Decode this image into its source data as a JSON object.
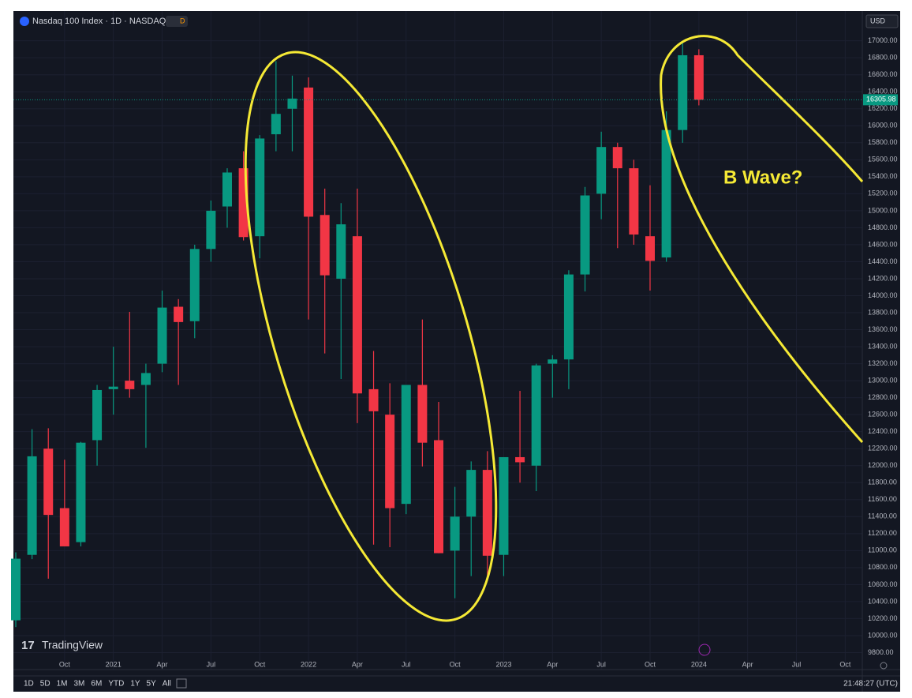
{
  "chart_data": {
    "type": "candlestick",
    "title": "Nasdaq 100 Index · 1D · NASDAQ",
    "currency": "USD",
    "annotation": "B Wave?",
    "watermark": "TradingView",
    "clock": "21:48:27 (UTC)",
    "ranges": [
      "1D",
      "5D",
      "1M",
      "3M",
      "6M",
      "YTD",
      "1Y",
      "5Y",
      "All"
    ],
    "x": [
      "2020-07",
      "2020-08",
      "2020-09",
      "2020-10",
      "2020-11",
      "2020-12",
      "2021-01",
      "2021-02",
      "2021-03",
      "2021-04",
      "2021-05",
      "2021-06",
      "2021-07",
      "2021-08",
      "2021-09",
      "2021-10",
      "2021-11",
      "2021-12",
      "2022-01",
      "2022-02",
      "2022-03",
      "2022-04",
      "2022-05",
      "2022-06",
      "2022-07",
      "2022-08",
      "2022-09",
      "2022-10",
      "2022-11",
      "2022-12",
      "2023-01",
      "2023-02",
      "2023-03",
      "2023-04",
      "2023-05",
      "2023-06",
      "2023-07",
      "2023-08",
      "2023-09",
      "2023-10",
      "2023-11",
      "2023-12",
      "2024-01"
    ],
    "open": [
      10180,
      10950,
      12200,
      11500,
      11100,
      12300,
      12900,
      13000,
      12950,
      13200,
      13870,
      13700,
      14550,
      15050,
      15500,
      14700,
      15900,
      16200,
      16450,
      14950,
      14200,
      14700,
      12900,
      12600,
      11550,
      12950,
      12300,
      11000,
      11400,
      11950,
      10950,
      12100,
      12000,
      13200,
      13250,
      14250,
      15200,
      15750,
      15500,
      14700,
      14450,
      15950,
      16830
    ],
    "high": [
      10980,
      12430,
      12440,
      12070,
      12280,
      12950,
      13400,
      13810,
      13200,
      14060,
      13960,
      14600,
      15120,
      15500,
      15700,
      15890,
      16760,
      16590,
      16570,
      15260,
      15090,
      15260,
      13350,
      12970,
      12950,
      13720,
      12750,
      11750,
      12050,
      12170,
      12100,
      12880,
      13200,
      13300,
      14300,
      15280,
      15930,
      15800,
      15600,
      15300,
      16170,
      16970,
      16900
    ],
    "low": [
      10100,
      10900,
      10670,
      11050,
      11050,
      12000,
      12600,
      12800,
      12210,
      13100,
      12950,
      13500,
      14400,
      14800,
      14650,
      14440,
      15700,
      15700,
      13720,
      13320,
      13020,
      12500,
      11070,
      11040,
      11430,
      11990,
      10970,
      10440,
      10700,
      10690,
      10700,
      11800,
      11700,
      12800,
      12900,
      14050,
      14900,
      14560,
      14600,
      14060,
      14400,
      15800,
      16240
    ],
    "close": [
      10905,
      12110,
      11420,
      11050,
      12270,
      12890,
      12930,
      12900,
      13090,
      13860,
      13690,
      14550,
      15000,
      15450,
      14690,
      15850,
      16140,
      16320,
      14930,
      14240,
      14840,
      12850,
      12640,
      11500,
      12950,
      12270,
      10970,
      11400,
      11950,
      10940,
      12100,
      12040,
      13180,
      13250,
      14250,
      15180,
      15750,
      15500,
      14720,
      14410,
      15950,
      16830,
      16306
    ],
    "up_color": "#089981",
    "down_color": "#f23645",
    "last_price": {
      "value": 16305.98,
      "label": "16305.98"
    },
    "xlim": [
      "2020-07",
      "2024-11"
    ],
    "xticks": [
      {
        "value": "2020-10",
        "label": "Oct"
      },
      {
        "value": "2021-01",
        "label": "2021"
      },
      {
        "value": "2021-04",
        "label": "Apr"
      },
      {
        "value": "2021-07",
        "label": "Jul"
      },
      {
        "value": "2021-10",
        "label": "Oct"
      },
      {
        "value": "2022-01",
        "label": "2022"
      },
      {
        "value": "2022-04",
        "label": "Apr"
      },
      {
        "value": "2022-07",
        "label": "Jul"
      },
      {
        "value": "2022-10",
        "label": "Oct"
      },
      {
        "value": "2023-01",
        "label": "2023"
      },
      {
        "value": "2023-04",
        "label": "Apr"
      },
      {
        "value": "2023-07",
        "label": "Jul"
      },
      {
        "value": "2023-10",
        "label": "Oct"
      },
      {
        "value": "2024-01",
        "label": "2024"
      },
      {
        "value": "2024-04",
        "label": "Apr"
      },
      {
        "value": "2024-07",
        "label": "Jul"
      },
      {
        "value": "2024-10",
        "label": "Oct"
      }
    ],
    "ylim": [
      9600,
      17350
    ],
    "yticks": [
      {
        "value": 9800,
        "label": "9800.00"
      },
      {
        "value": 10000,
        "label": "10000.00"
      },
      {
        "value": 10200,
        "label": "10200.00"
      },
      {
        "value": 10400,
        "label": "10400.00"
      },
      {
        "value": 10600,
        "label": "10600.00"
      },
      {
        "value": 10800,
        "label": "10800.00"
      },
      {
        "value": 11000,
        "label": "11000.00"
      },
      {
        "value": 11200,
        "label": "11200.00"
      },
      {
        "value": 11400,
        "label": "11400.00"
      },
      {
        "value": 11600,
        "label": "11600.00"
      },
      {
        "value": 11800,
        "label": "11800.00"
      },
      {
        "value": 12000,
        "label": "12000.00"
      },
      {
        "value": 12200,
        "label": "12200.00"
      },
      {
        "value": 12400,
        "label": "12400.00"
      },
      {
        "value": 12600,
        "label": "12600.00"
      },
      {
        "value": 12800,
        "label": "12800.00"
      },
      {
        "value": 13000,
        "label": "13000.00"
      },
      {
        "value": 13200,
        "label": "13200.00"
      },
      {
        "value": 13400,
        "label": "13400.00"
      },
      {
        "value": 13600,
        "label": "13600.00"
      },
      {
        "value": 13800,
        "label": "13800.00"
      },
      {
        "value": 14000,
        "label": "14000.00"
      },
      {
        "value": 14200,
        "label": "14200.00"
      },
      {
        "value": 14400,
        "label": "14400.00"
      },
      {
        "value": 14600,
        "label": "14600.00"
      },
      {
        "value": 14800,
        "label": "14800.00"
      },
      {
        "value": 15000,
        "label": "15000.00"
      },
      {
        "value": 15200,
        "label": "15200.00"
      },
      {
        "value": 15400,
        "label": "15400.00"
      },
      {
        "value": 15600,
        "label": "15600.00"
      },
      {
        "value": 15800,
        "label": "15800.00"
      },
      {
        "value": 16000,
        "label": "16000.00"
      },
      {
        "value": 16200,
        "label": "16200.00"
      },
      {
        "value": 16400,
        "label": "16400.00"
      },
      {
        "value": 16600,
        "label": "16600.00"
      },
      {
        "value": 16800,
        "label": "16800.00"
      },
      {
        "value": 17000,
        "label": "17000.00"
      }
    ],
    "grid": true
  }
}
